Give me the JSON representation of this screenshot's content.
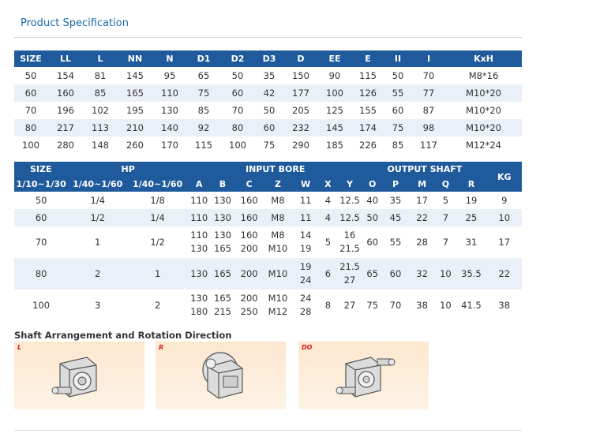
{
  "title": "Product Specification",
  "table1": {
    "headers": [
      "SIZE",
      "LL",
      "L",
      "NN",
      "N",
      "D1",
      "D2",
      "D3",
      "D",
      "EE",
      "E",
      "II",
      "I",
      "KxH"
    ],
    "rows": [
      [
        "50",
        "154",
        "81",
        "145",
        "95",
        "65",
        "50",
        "35",
        "150",
        "90",
        "115",
        "50",
        "70",
        "M8*16"
      ],
      [
        "60",
        "160",
        "85",
        "165",
        "110",
        "75",
        "60",
        "42",
        "177",
        "100",
        "126",
        "55",
        "77",
        "M10*20"
      ],
      [
        "70",
        "196",
        "102",
        "195",
        "130",
        "85",
        "70",
        "50",
        "205",
        "125",
        "155",
        "60",
        "87",
        "M10*20"
      ],
      [
        "80",
        "217",
        "113",
        "210",
        "140",
        "92",
        "80",
        "60",
        "232",
        "145",
        "174",
        "75",
        "98",
        "M10*20"
      ],
      [
        "100",
        "280",
        "148",
        "260",
        "170",
        "115",
        "100",
        "75",
        "290",
        "185",
        "226",
        "85",
        "117",
        "M12*24"
      ]
    ]
  },
  "table2": {
    "group_headers": {
      "size": "SIZE",
      "hp": "HP",
      "input_bore": "INPUT BORE",
      "output_shaft": "OUTPUT SHAFT",
      "kg": "KG"
    },
    "sub_headers": [
      "1/10~1/30",
      "1/40~1/60",
      "1/40~1/60",
      "A",
      "B",
      "C",
      "Z",
      "W",
      "X",
      "Y",
      "O",
      "P",
      "M",
      "Q",
      "R"
    ],
    "rows": [
      {
        "size": "50",
        "hp1": "1/4",
        "hp2": "1/8",
        "a": "110",
        "b": "130",
        "c": "160",
        "z": "M8",
        "w": "11",
        "x": "4",
        "y": "12.5",
        "o": "40",
        "p": "35",
        "m": "17",
        "q": "5",
        "r": "19",
        "kg": "9"
      },
      {
        "size": "60",
        "hp1": "1/2",
        "hp2": "1/4",
        "a": "110",
        "b": "130",
        "c": "160",
        "z": "M8",
        "w": "11",
        "x": "4",
        "y": "12.5",
        "o": "50",
        "p": "45",
        "m": "22",
        "q": "7",
        "r": "25",
        "kg": "10"
      },
      {
        "size": "70",
        "hp1": "1",
        "hp2": "1/2",
        "a1": "110",
        "a2": "130",
        "b1": "130",
        "b2": "165",
        "c1": "160",
        "c2": "200",
        "z1": "M8",
        "z2": "M10",
        "w1": "14",
        "w2": "19",
        "x": "5",
        "y1": "16",
        "y2": "21.5",
        "o": "60",
        "p": "55",
        "m": "28",
        "q": "7",
        "r": "31",
        "kg": "17"
      },
      {
        "size": "80",
        "hp1": "2",
        "hp2": "1",
        "a": "130",
        "b": "165",
        "c": "200",
        "z": "M10",
        "w1": "19",
        "w2": "24",
        "x": "6",
        "y1": "21.5",
        "y2": "27",
        "o": "65",
        "p": "60",
        "m": "32",
        "q": "10",
        "r": "35.5",
        "kg": "22"
      },
      {
        "size": "100",
        "hp1": "3",
        "hp2": "2",
        "a1": "130",
        "a2": "180",
        "b1": "165",
        "b2": "215",
        "c1": "200",
        "c2": "250",
        "z1": "M10",
        "z2": "M12",
        "w1": "24",
        "w2": "28",
        "x": "8",
        "y": "27",
        "o": "75",
        "p": "70",
        "m": "38",
        "q": "10",
        "r": "41.5",
        "kg": "38"
      }
    ]
  },
  "arrangement": {
    "title": "Shaft Arrangement and Rotation Direction",
    "panels": [
      "L",
      "R",
      "DO"
    ]
  },
  "colors": {
    "header_bg": "#1f5a9c",
    "row_alt": "#eaf0f7",
    "title": "#1a6aa8",
    "panel_label": "#d42020"
  }
}
